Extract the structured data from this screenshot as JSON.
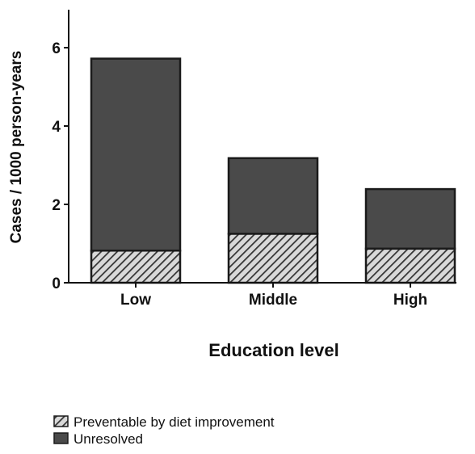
{
  "chart_data": {
    "type": "bar",
    "stacked": true,
    "title": "",
    "xlabel": "Education level",
    "ylabel": "Cases / 1000 person-years",
    "categories": [
      "Low",
      "Middle",
      "High"
    ],
    "ylim": [
      0,
      7
    ],
    "yticks": [
      0,
      2,
      4,
      6
    ],
    "grid": false,
    "legend_position": "bottom-left",
    "series": [
      {
        "name": "Preventable by diet improvement",
        "values": [
          0.82,
          1.25,
          0.87
        ],
        "pattern": "diagonal-hatch",
        "color": "#8c8c8c"
      },
      {
        "name": "Unresolved",
        "values": [
          4.9,
          1.93,
          1.52
        ],
        "pattern": "solid",
        "color": "#4a4a4a"
      }
    ]
  }
}
